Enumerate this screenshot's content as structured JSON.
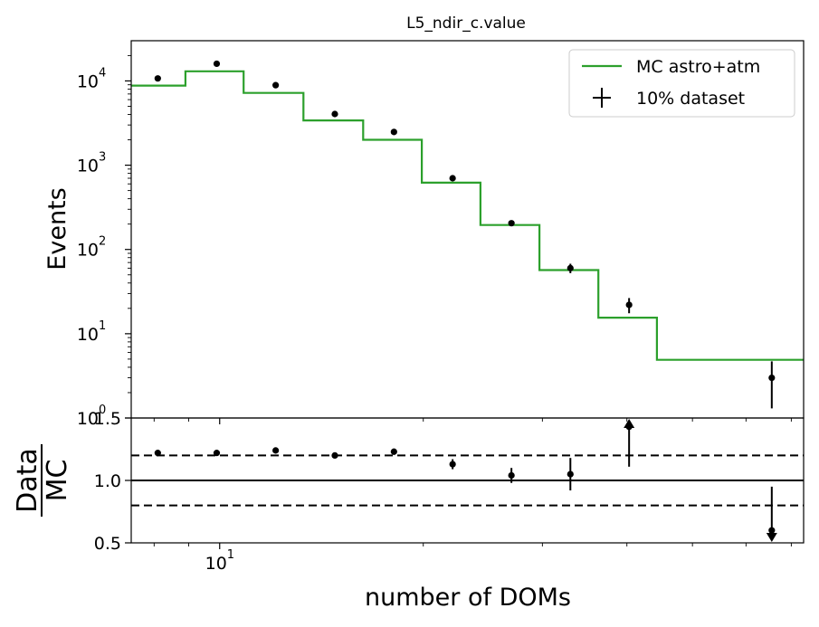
{
  "chart_data": [
    {
      "type": "line",
      "title": "L5_ndir_c.value",
      "ylabel": "Events",
      "yscale": "log",
      "ylim": [
        1,
        30000
      ],
      "xscale": "log",
      "xlim": [
        7.4,
        73
      ],
      "yticks": [
        {
          "value": 1,
          "base": "10",
          "exp": "0"
        },
        {
          "value": 10,
          "base": "10",
          "exp": "1"
        },
        {
          "value": 100,
          "base": "10",
          "exp": "2"
        },
        {
          "value": 1000,
          "base": "10",
          "exp": "3"
        },
        {
          "value": 10000,
          "base": "10",
          "exp": "4"
        }
      ],
      "legend": {
        "position": "upper-right",
        "entries": [
          {
            "label": "MC astro+atm",
            "style": "line",
            "color": "#2ca02c"
          },
          {
            "label": "10% dataset",
            "style": "errorbar",
            "color": "#000000"
          }
        ]
      },
      "mc_step": {
        "name": "MC astro+atm",
        "color": "#2ca02c",
        "edges": [
          7.4,
          8.9,
          10.85,
          13.3,
          16.3,
          19.9,
          24.3,
          29.7,
          36.3,
          44.3,
          54.2,
          73
        ],
        "values": [
          8800,
          13000,
          7200,
          3400,
          2000,
          620,
          195,
          57,
          15.5,
          4.9,
          4.9
        ]
      },
      "data_points": {
        "name": "10% dataset",
        "color": "#000000",
        "x": [
          8.1,
          9.9,
          12.1,
          14.8,
          18.1,
          22.1,
          27.0,
          33.0,
          40.3,
          49.2,
          65.5
        ],
        "y": [
          10700,
          16000,
          8900,
          4050,
          2480,
          700,
          205,
          60,
          22,
          null,
          3
        ],
        "yerr_low": [
          104,
          127,
          95,
          64,
          50,
          26,
          14,
          7.7,
          4.5,
          null,
          1.7
        ],
        "yerr_high": [
          104,
          127,
          95,
          64,
          50,
          26,
          14,
          7.7,
          4.5,
          null,
          1.7
        ]
      }
    },
    {
      "type": "scatter",
      "ylabel_num": "Data",
      "ylabel_den": "MC",
      "xlabel": "number of DOMs",
      "xscale": "log",
      "xlim": [
        7.4,
        73
      ],
      "ylim": [
        0.5,
        1.5
      ],
      "yticks": [
        "0.5",
        "1.0",
        "1.5"
      ],
      "xtick_major": {
        "value": 10,
        "base": "10",
        "exp": "1"
      },
      "reference_lines": [
        {
          "y": 1.0,
          "style": "solid"
        },
        {
          "y": 1.2,
          "style": "dashed"
        },
        {
          "y": 0.8,
          "style": "dashed"
        }
      ],
      "ratio_points": {
        "x": [
          8.1,
          9.9,
          12.1,
          14.8,
          18.1,
          22.1,
          27.0,
          33.0,
          40.3,
          49.2,
          65.5
        ],
        "y": [
          1.22,
          1.22,
          1.24,
          1.2,
          1.23,
          1.13,
          1.04,
          1.05,
          1.43,
          null,
          0.6
        ],
        "yerr_low": [
          0.012,
          0.012,
          0.013,
          0.019,
          0.025,
          0.04,
          0.06,
          0.13,
          0.32,
          null,
          0.0
        ],
        "yerr_high": [
          0.012,
          0.012,
          0.013,
          0.019,
          0.025,
          0.04,
          0.06,
          0.13,
          0.0,
          null,
          0.35
        ],
        "arrow_up": [
          false,
          false,
          false,
          false,
          false,
          false,
          false,
          false,
          true,
          false,
          false
        ],
        "arrow_down": [
          false,
          false,
          false,
          false,
          false,
          false,
          false,
          false,
          false,
          false,
          true
        ]
      }
    }
  ]
}
